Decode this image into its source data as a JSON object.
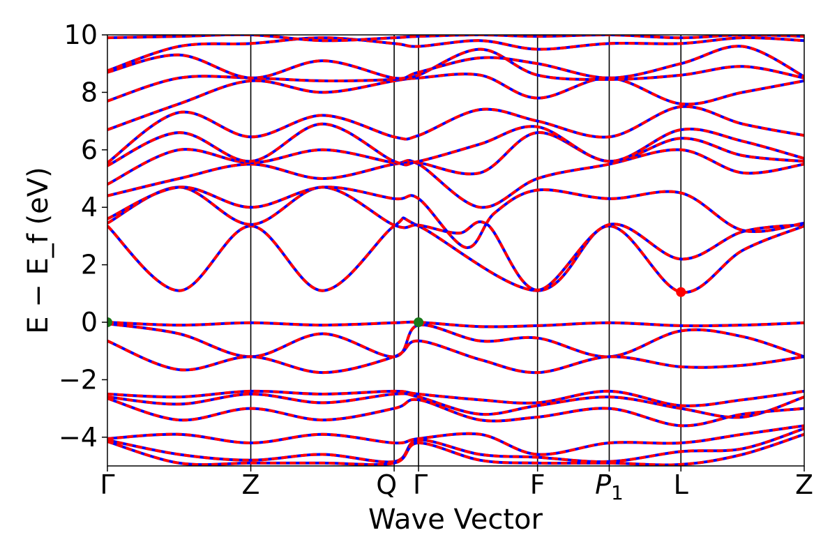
{
  "chart_data": {
    "type": "line",
    "xlabel": "Wave Vector",
    "ylabel": "E − E_f (eV)",
    "ylim": [
      -5,
      10
    ],
    "yticks": [
      10,
      8,
      6,
      4,
      2,
      0,
      -2,
      -4
    ],
    "ytick_labels": [
      "10",
      "8",
      "6",
      "4",
      "2",
      "0",
      "−2",
      "−4"
    ],
    "kpath_positions": [
      0,
      1.0,
      2.0,
      2.17,
      3.0,
      3.5,
      4.0,
      4.86
    ],
    "kpath_labels": [
      "Γ",
      "Z",
      "Q",
      "Γ",
      "F",
      "P",
      "L",
      "Z"
    ],
    "kpath_label_subscripts": [
      "",
      "",
      "",
      "",
      "",
      "1",
      "",
      ""
    ],
    "line_colors": {
      "band": "#ff0000",
      "overlay": "#0000ff"
    },
    "markers": [
      {
        "name": "VBM",
        "x": 0.0,
        "y": 0.0,
        "color": "#1a7a1a"
      },
      {
        "name": "VBM",
        "x": 2.17,
        "y": 0.0,
        "color": "#1a7a1a"
      },
      {
        "name": "CBM",
        "x": 4.0,
        "y": 1.05,
        "color": "#ff0000"
      }
    ],
    "bands": [
      {
        "name": "cb1",
        "points": [
          [
            0,
            3.35
          ],
          [
            0.5,
            1.1
          ],
          [
            1.0,
            3.35
          ],
          [
            1.5,
            1.1
          ],
          [
            2.0,
            3.35
          ],
          [
            2.17,
            3.35
          ],
          [
            3.0,
            1.1
          ],
          [
            3.5,
            3.35
          ],
          [
            4.0,
            1.05
          ],
          [
            4.43,
            2.5
          ],
          [
            4.86,
            3.35
          ]
        ]
      },
      {
        "name": "cb2",
        "points": [
          [
            0,
            3.45
          ],
          [
            0.5,
            4.7
          ],
          [
            1.0,
            3.4
          ],
          [
            1.5,
            4.7
          ],
          [
            2.0,
            3.38
          ],
          [
            2.17,
            3.38
          ],
          [
            2.45,
            3.1
          ],
          [
            2.65,
            3.4
          ],
          [
            3.0,
            1.12
          ],
          [
            3.5,
            3.4
          ],
          [
            4.0,
            2.2
          ],
          [
            4.43,
            3.15
          ],
          [
            4.86,
            3.4
          ]
        ]
      },
      {
        "name": "cb3",
        "points": [
          [
            0,
            3.6
          ],
          [
            0.5,
            4.7
          ],
          [
            1.0,
            4.0
          ],
          [
            1.5,
            4.7
          ],
          [
            2.0,
            4.3
          ],
          [
            2.17,
            4.3
          ],
          [
            2.5,
            2.6
          ],
          [
            2.7,
            3.8
          ],
          [
            3.0,
            4.6
          ],
          [
            3.5,
            4.3
          ],
          [
            4.0,
            4.5
          ],
          [
            4.43,
            3.2
          ],
          [
            4.86,
            3.45
          ]
        ]
      },
      {
        "name": "cb4",
        "points": [
          [
            0,
            4.4
          ],
          [
            0.5,
            5.0
          ],
          [
            1.0,
            5.5
          ],
          [
            1.5,
            5.0
          ],
          [
            2.0,
            5.5
          ],
          [
            2.17,
            5.5
          ],
          [
            2.6,
            4.0
          ],
          [
            3.0,
            5.0
          ],
          [
            3.5,
            5.5
          ],
          [
            4.0,
            6.0
          ],
          [
            4.43,
            5.2
          ],
          [
            4.86,
            5.5
          ]
        ]
      },
      {
        "name": "cb5",
        "points": [
          [
            0,
            4.8
          ],
          [
            0.5,
            6.0
          ],
          [
            1.0,
            5.55
          ],
          [
            1.5,
            6.0
          ],
          [
            2.0,
            5.55
          ],
          [
            2.17,
            5.55
          ],
          [
            2.6,
            5.2
          ],
          [
            3.0,
            6.6
          ],
          [
            3.5,
            5.6
          ],
          [
            4.0,
            6.4
          ],
          [
            4.43,
            5.8
          ],
          [
            4.86,
            5.6
          ]
        ]
      },
      {
        "name": "cb6",
        "points": [
          [
            0,
            5.45
          ],
          [
            0.5,
            6.6
          ],
          [
            1.0,
            5.6
          ],
          [
            1.5,
            6.9
          ],
          [
            2.0,
            5.6
          ],
          [
            2.17,
            5.6
          ],
          [
            2.6,
            6.2
          ],
          [
            3.0,
            6.8
          ],
          [
            3.5,
            5.6
          ],
          [
            4.0,
            6.7
          ],
          [
            4.43,
            6.3
          ],
          [
            4.86,
            5.7
          ]
        ]
      },
      {
        "name": "cb7",
        "points": [
          [
            0,
            5.55
          ],
          [
            0.5,
            7.3
          ],
          [
            1.0,
            6.45
          ],
          [
            1.5,
            7.2
          ],
          [
            2.0,
            6.45
          ],
          [
            2.17,
            6.5
          ],
          [
            2.6,
            7.4
          ],
          [
            3.0,
            7.0
          ],
          [
            3.5,
            6.45
          ],
          [
            4.0,
            7.5
          ],
          [
            4.43,
            6.9
          ],
          [
            4.86,
            6.5
          ]
        ]
      },
      {
        "name": "cb8",
        "points": [
          [
            0,
            6.7
          ],
          [
            0.5,
            7.6
          ],
          [
            1.0,
            8.4
          ],
          [
            1.5,
            8.0
          ],
          [
            2.0,
            8.4
          ],
          [
            2.17,
            8.5
          ],
          [
            2.6,
            8.6
          ],
          [
            3.0,
            7.8
          ],
          [
            3.5,
            8.5
          ],
          [
            4.0,
            7.6
          ],
          [
            4.43,
            8.0
          ],
          [
            4.86,
            8.4
          ]
        ]
      },
      {
        "name": "cb9",
        "points": [
          [
            0,
            7.7
          ],
          [
            0.5,
            8.5
          ],
          [
            1.0,
            8.5
          ],
          [
            1.5,
            8.4
          ],
          [
            2.0,
            8.45
          ],
          [
            2.17,
            8.6
          ],
          [
            2.6,
            9.5
          ],
          [
            3.0,
            8.6
          ],
          [
            3.5,
            8.45
          ],
          [
            4.0,
            8.6
          ],
          [
            4.43,
            8.9
          ],
          [
            4.86,
            8.5
          ]
        ]
      },
      {
        "name": "cb10",
        "points": [
          [
            0,
            8.7
          ],
          [
            0.5,
            9.3
          ],
          [
            1.0,
            8.5
          ],
          [
            1.5,
            9.1
          ],
          [
            2.0,
            8.5
          ],
          [
            2.17,
            8.7
          ],
          [
            2.6,
            9.2
          ],
          [
            3.0,
            9.0
          ],
          [
            3.5,
            8.5
          ],
          [
            4.0,
            9.0
          ],
          [
            4.43,
            9.6
          ],
          [
            4.86,
            8.55
          ]
        ]
      },
      {
        "name": "cb11",
        "points": [
          [
            0,
            8.75
          ],
          [
            0.5,
            9.6
          ],
          [
            1.0,
            9.7
          ],
          [
            1.5,
            9.9
          ],
          [
            2.0,
            9.7
          ],
          [
            2.17,
            9.6
          ],
          [
            2.6,
            9.8
          ],
          [
            3.0,
            9.5
          ],
          [
            3.5,
            9.7
          ],
          [
            4.0,
            9.7
          ],
          [
            4.43,
            9.9
          ],
          [
            4.86,
            9.8
          ]
        ]
      },
      {
        "name": "cb12",
        "points": [
          [
            0,
            9.9
          ],
          [
            0.5,
            9.95
          ],
          [
            1.0,
            10.0
          ],
          [
            1.5,
            9.8
          ],
          [
            2.0,
            9.9
          ],
          [
            2.17,
            9.95
          ],
          [
            2.6,
            10.0
          ],
          [
            3.0,
            9.95
          ],
          [
            3.5,
            10.0
          ],
          [
            4.0,
            9.9
          ],
          [
            4.43,
            10.0
          ],
          [
            4.86,
            9.95
          ]
        ]
      },
      {
        "name": "vb1",
        "points": [
          [
            0,
            0.0
          ],
          [
            0.5,
            -0.1
          ],
          [
            1.0,
            -0.02
          ],
          [
            1.5,
            -0.1
          ],
          [
            2.0,
            -0.02
          ],
          [
            2.17,
            0.0
          ],
          [
            2.6,
            -0.15
          ],
          [
            3.0,
            -0.12
          ],
          [
            3.5,
            -0.02
          ],
          [
            4.0,
            -0.12
          ],
          [
            4.43,
            -0.1
          ],
          [
            4.86,
            -0.02
          ]
        ]
      },
      {
        "name": "vb2",
        "points": [
          [
            0,
            -0.05
          ],
          [
            0.5,
            -0.4
          ],
          [
            1.0,
            -1.2
          ],
          [
            1.5,
            -0.4
          ],
          [
            2.0,
            -1.2
          ],
          [
            2.17,
            -0.1
          ],
          [
            2.6,
            -0.65
          ],
          [
            3.0,
            -0.55
          ],
          [
            3.5,
            -1.2
          ],
          [
            4.0,
            -0.3
          ],
          [
            4.43,
            -0.5
          ],
          [
            4.86,
            -1.2
          ]
        ]
      },
      {
        "name": "vb3",
        "points": [
          [
            0,
            -0.65
          ],
          [
            0.5,
            -1.65
          ],
          [
            1.0,
            -1.2
          ],
          [
            1.5,
            -1.75
          ],
          [
            2.0,
            -1.2
          ],
          [
            2.17,
            -0.65
          ],
          [
            2.6,
            -1.3
          ],
          [
            3.0,
            -1.75
          ],
          [
            3.5,
            -1.2
          ],
          [
            4.0,
            -1.55
          ],
          [
            4.43,
            -1.5
          ],
          [
            4.86,
            -1.2
          ]
        ]
      },
      {
        "name": "vb4",
        "points": [
          [
            0,
            -2.5
          ],
          [
            0.5,
            -2.6
          ],
          [
            1.0,
            -2.4
          ],
          [
            1.5,
            -2.5
          ],
          [
            2.0,
            -2.4
          ],
          [
            2.17,
            -2.5
          ],
          [
            2.6,
            -2.7
          ],
          [
            3.0,
            -2.8
          ],
          [
            3.5,
            -2.4
          ],
          [
            4.0,
            -2.9
          ],
          [
            4.43,
            -2.7
          ],
          [
            4.86,
            -2.4
          ]
        ]
      },
      {
        "name": "vb5",
        "points": [
          [
            0,
            -2.6
          ],
          [
            0.5,
            -2.85
          ],
          [
            1.0,
            -2.5
          ],
          [
            1.5,
            -2.8
          ],
          [
            2.0,
            -2.5
          ],
          [
            2.17,
            -2.6
          ],
          [
            2.6,
            -3.2
          ],
          [
            3.0,
            -2.9
          ],
          [
            3.5,
            -2.6
          ],
          [
            4.0,
            -3.0
          ],
          [
            4.43,
            -3.3
          ],
          [
            4.86,
            -2.6
          ]
        ]
      },
      {
        "name": "vb6",
        "points": [
          [
            0,
            -2.65
          ],
          [
            0.5,
            -3.4
          ],
          [
            1.0,
            -3.0
          ],
          [
            1.5,
            -3.4
          ],
          [
            2.0,
            -3.0
          ],
          [
            2.17,
            -2.7
          ],
          [
            2.6,
            -3.4
          ],
          [
            3.0,
            -3.3
          ],
          [
            3.5,
            -3.0
          ],
          [
            4.0,
            -3.6
          ],
          [
            4.43,
            -3.2
          ],
          [
            4.86,
            -3.0
          ]
        ]
      },
      {
        "name": "vb7",
        "points": [
          [
            0,
            -4.05
          ],
          [
            0.5,
            -3.9
          ],
          [
            1.0,
            -4.2
          ],
          [
            1.5,
            -3.9
          ],
          [
            2.0,
            -4.2
          ],
          [
            2.17,
            -4.05
          ],
          [
            2.6,
            -3.9
          ],
          [
            3.0,
            -4.6
          ],
          [
            3.5,
            -4.2
          ],
          [
            4.0,
            -4.2
          ],
          [
            4.43,
            -3.9
          ],
          [
            4.86,
            -3.6
          ]
        ]
      },
      {
        "name": "vb8",
        "points": [
          [
            0,
            -4.1
          ],
          [
            0.5,
            -4.6
          ],
          [
            1.0,
            -4.8
          ],
          [
            1.5,
            -4.6
          ],
          [
            2.0,
            -4.85
          ],
          [
            2.17,
            -4.1
          ],
          [
            2.6,
            -4.6
          ],
          [
            3.0,
            -4.7
          ],
          [
            3.5,
            -4.85
          ],
          [
            4.0,
            -4.5
          ],
          [
            4.43,
            -4.4
          ],
          [
            4.86,
            -3.7
          ]
        ]
      },
      {
        "name": "vb9",
        "points": [
          [
            0,
            -4.15
          ],
          [
            0.5,
            -4.9
          ],
          [
            1.0,
            -4.9
          ],
          [
            1.5,
            -4.9
          ],
          [
            2.0,
            -4.9
          ],
          [
            2.17,
            -4.2
          ],
          [
            2.6,
            -4.8
          ],
          [
            3.0,
            -4.9
          ],
          [
            3.5,
            -4.9
          ],
          [
            4.0,
            -4.95
          ],
          [
            4.43,
            -4.6
          ],
          [
            4.86,
            -3.9
          ]
        ]
      }
    ]
  }
}
